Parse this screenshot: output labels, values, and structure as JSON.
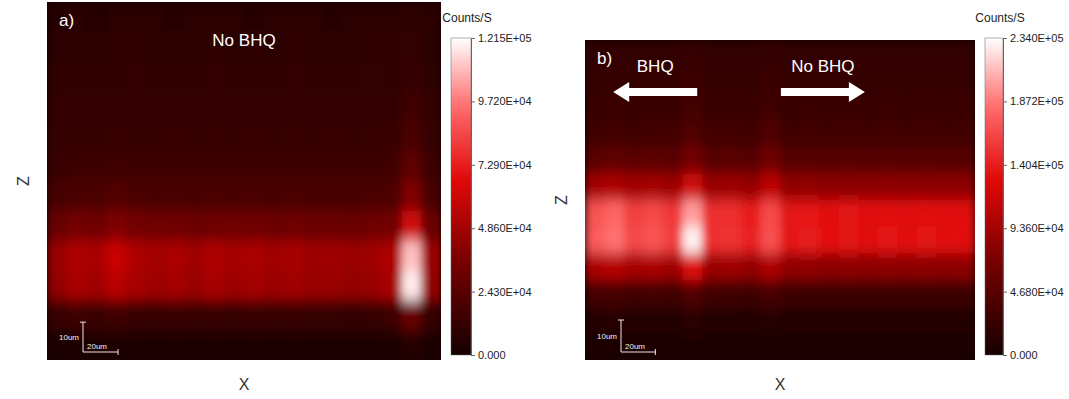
{
  "chart_data": [
    {
      "type": "heatmap",
      "panel_label": "a)",
      "x_label": "X",
      "y_label": "Z",
      "tick_labels": false,
      "xlim": [
        0,
        225
      ],
      "ylim": [
        0,
        120
      ],
      "annotations": [
        {
          "text": "No BHQ"
        }
      ],
      "scale_bar": {
        "x_length": 20,
        "x_label": "20um",
        "z_length": 10,
        "z_label": "10um"
      },
      "colorbar": {
        "title": "Counts/S",
        "range": [
          0,
          121500
        ],
        "ticks": [
          {
            "value": 0,
            "label": "0.000"
          },
          {
            "value": 24300,
            "label": "2.430E+04"
          },
          {
            "value": 48600,
            "label": "4.860E+04"
          },
          {
            "value": 72900,
            "label": "7.290E+04"
          },
          {
            "value": 97200,
            "label": "9.720E+04"
          },
          {
            "value": 121500,
            "label": "1.215E+05"
          }
        ]
      },
      "cells": [
        [
          7000,
          7500,
          7000,
          7500,
          8000,
          7500,
          7000,
          7500,
          8000,
          7500,
          7000,
          7500,
          8000,
          7500,
          7000,
          7500,
          8000,
          7500,
          9000,
          7500
        ],
        [
          8000,
          8500,
          8000,
          8500,
          8500,
          8000,
          8500,
          8000,
          8500,
          8000,
          8500,
          8000,
          8500,
          8000,
          8500,
          8000,
          8500,
          8500,
          10000,
          8000
        ],
        [
          9000,
          9500,
          9000,
          9500,
          10000,
          9500,
          9000,
          9500,
          10000,
          9500,
          9000,
          9500,
          10000,
          9500,
          9000,
          9500,
          10000,
          9500,
          12000,
          9000
        ],
        [
          10000,
          11000,
          10500,
          11000,
          11000,
          10500,
          11000,
          10500,
          11000,
          10500,
          11000,
          10500,
          11000,
          10500,
          11000,
          10500,
          11000,
          11000,
          15000,
          10500
        ],
        [
          11500,
          12000,
          12000,
          13000,
          12000,
          12000,
          12500,
          12000,
          12500,
          12000,
          12500,
          12000,
          12500,
          12000,
          12500,
          12000,
          12500,
          13000,
          19000,
          12000
        ],
        [
          13000,
          14000,
          14000,
          15000,
          14000,
          14000,
          14500,
          14000,
          14500,
          14000,
          14500,
          14000,
          14500,
          14000,
          14000,
          14000,
          14500,
          15000,
          26000,
          14000
        ],
        [
          18000,
          20000,
          20000,
          22000,
          20000,
          19000,
          20000,
          19000,
          20000,
          19000,
          20000,
          19000,
          20000,
          19000,
          19000,
          19000,
          20000,
          21000,
          38000,
          19000
        ],
        [
          30000,
          34000,
          33000,
          38000,
          34000,
          32000,
          33000,
          31000,
          33000,
          32000,
          33000,
          31000,
          32000,
          31000,
          31000,
          30000,
          32000,
          34000,
          62000,
          31000
        ],
        [
          46000,
          52000,
          50000,
          60000,
          52000,
          49000,
          51000,
          48000,
          52000,
          49000,
          51000,
          48000,
          50000,
          47000,
          48000,
          46000,
          48000,
          52000,
          110000,
          47000
        ],
        [
          44000,
          50000,
          48000,
          55000,
          50000,
          47000,
          49000,
          46000,
          50000,
          47000,
          49000,
          46000,
          48000,
          45000,
          46000,
          44000,
          46000,
          50000,
          118000,
          45000
        ],
        [
          12000,
          14000,
          13000,
          15000,
          13000,
          12000,
          13000,
          12000,
          13000,
          12000,
          13000,
          12000,
          13000,
          12000,
          12000,
          11000,
          12000,
          14000,
          30000,
          12000
        ],
        [
          3000,
          3500,
          3000,
          3500,
          3000,
          3000,
          3500,
          3000,
          3000,
          3000,
          3500,
          3000,
          3000,
          3000,
          3000,
          3000,
          3000,
          3500,
          6000,
          3000
        ]
      ]
    },
    {
      "type": "heatmap",
      "panel_label": "b)",
      "x_label": "X",
      "y_label": "Z",
      "tick_labels": false,
      "xlim": [
        0,
        227
      ],
      "ylim": [
        0,
        100
      ],
      "annotations": [
        {
          "text": "BHQ",
          "arrow": "left"
        },
        {
          "text": "No BHQ",
          "arrow": "right"
        }
      ],
      "scale_bar": {
        "x_length": 20,
        "x_label": "20um",
        "z_length": 10,
        "z_label": "10um"
      },
      "colorbar": {
        "title": "Counts/S",
        "range": [
          0,
          234000
        ],
        "ticks": [
          {
            "value": 0,
            "label": "0.000"
          },
          {
            "value": 46800,
            "label": "4.680E+04"
          },
          {
            "value": 93600,
            "label": "9.360E+04"
          },
          {
            "value": 140400,
            "label": "1.404E+05"
          },
          {
            "value": 187200,
            "label": "1.872E+05"
          },
          {
            "value": 234000,
            "label": "2.340E+05"
          }
        ]
      },
      "cells": [
        [
          20000,
          21000,
          20000,
          21000,
          20000,
          24000,
          20000,
          21000,
          20000,
          23000,
          20000,
          21000,
          20000,
          21000,
          20000,
          21000,
          20000,
          21000,
          20000,
          21000
        ],
        [
          22000,
          23000,
          22000,
          23000,
          22000,
          27000,
          22000,
          23000,
          22000,
          26000,
          22000,
          23000,
          22000,
          23000,
          22000,
          23000,
          22000,
          23000,
          22000,
          23000
        ],
        [
          25000,
          26000,
          25000,
          26000,
          25000,
          32000,
          25000,
          26000,
          25000,
          30000,
          25000,
          26000,
          25000,
          26000,
          25000,
          26000,
          25000,
          26000,
          25000,
          26000
        ],
        [
          30000,
          32000,
          30000,
          32000,
          31000,
          42000,
          31000,
          32000,
          30000,
          40000,
          30000,
          31000,
          30000,
          31000,
          30000,
          31000,
          30000,
          31000,
          30000,
          31000
        ],
        [
          48000,
          52000,
          48000,
          50000,
          48000,
          65000,
          47000,
          48000,
          46000,
          62000,
          45000,
          46000,
          44000,
          45000,
          44000,
          45000,
          44000,
          45000,
          44000,
          45000
        ],
        [
          95000,
          100000,
          92000,
          95000,
          90000,
          120000,
          88000,
          90000,
          85000,
          110000,
          82000,
          84000,
          80000,
          82000,
          80000,
          82000,
          80000,
          82000,
          80000,
          82000
        ],
        [
          170000,
          180000,
          160000,
          165000,
          155000,
          200000,
          150000,
          150000,
          140000,
          165000,
          135000,
          138000,
          130000,
          134000,
          128000,
          132000,
          128000,
          132000,
          128000,
          130000
        ],
        [
          175000,
          185000,
          165000,
          170000,
          160000,
          230000,
          150000,
          152000,
          142000,
          168000,
          138000,
          140000,
          132000,
          136000,
          130000,
          134000,
          130000,
          134000,
          130000,
          132000
        ],
        [
          100000,
          105000,
          95000,
          98000,
          92000,
          130000,
          88000,
          90000,
          85000,
          100000,
          82000,
          84000,
          80000,
          82000,
          80000,
          82000,
          80000,
          82000,
          80000,
          82000
        ],
        [
          32000,
          34000,
          30000,
          32000,
          30000,
          42000,
          29000,
          30000,
          28000,
          34000,
          27000,
          28000,
          27000,
          28000,
          27000,
          28000,
          27000,
          28000,
          27000,
          28000
        ],
        [
          10000,
          11000,
          10000,
          10500,
          10000,
          14000,
          10000,
          10000,
          9500,
          11000,
          9500,
          10000,
          9500,
          10000,
          9500,
          10000,
          9500,
          10000,
          9500,
          10000
        ],
        [
          5000,
          5500,
          5000,
          5500,
          5000,
          6500,
          5000,
          5000,
          4800,
          5500,
          4800,
          5000,
          4800,
          5000,
          4800,
          5000,
          4800,
          5000,
          4800,
          5000
        ]
      ]
    }
  ]
}
